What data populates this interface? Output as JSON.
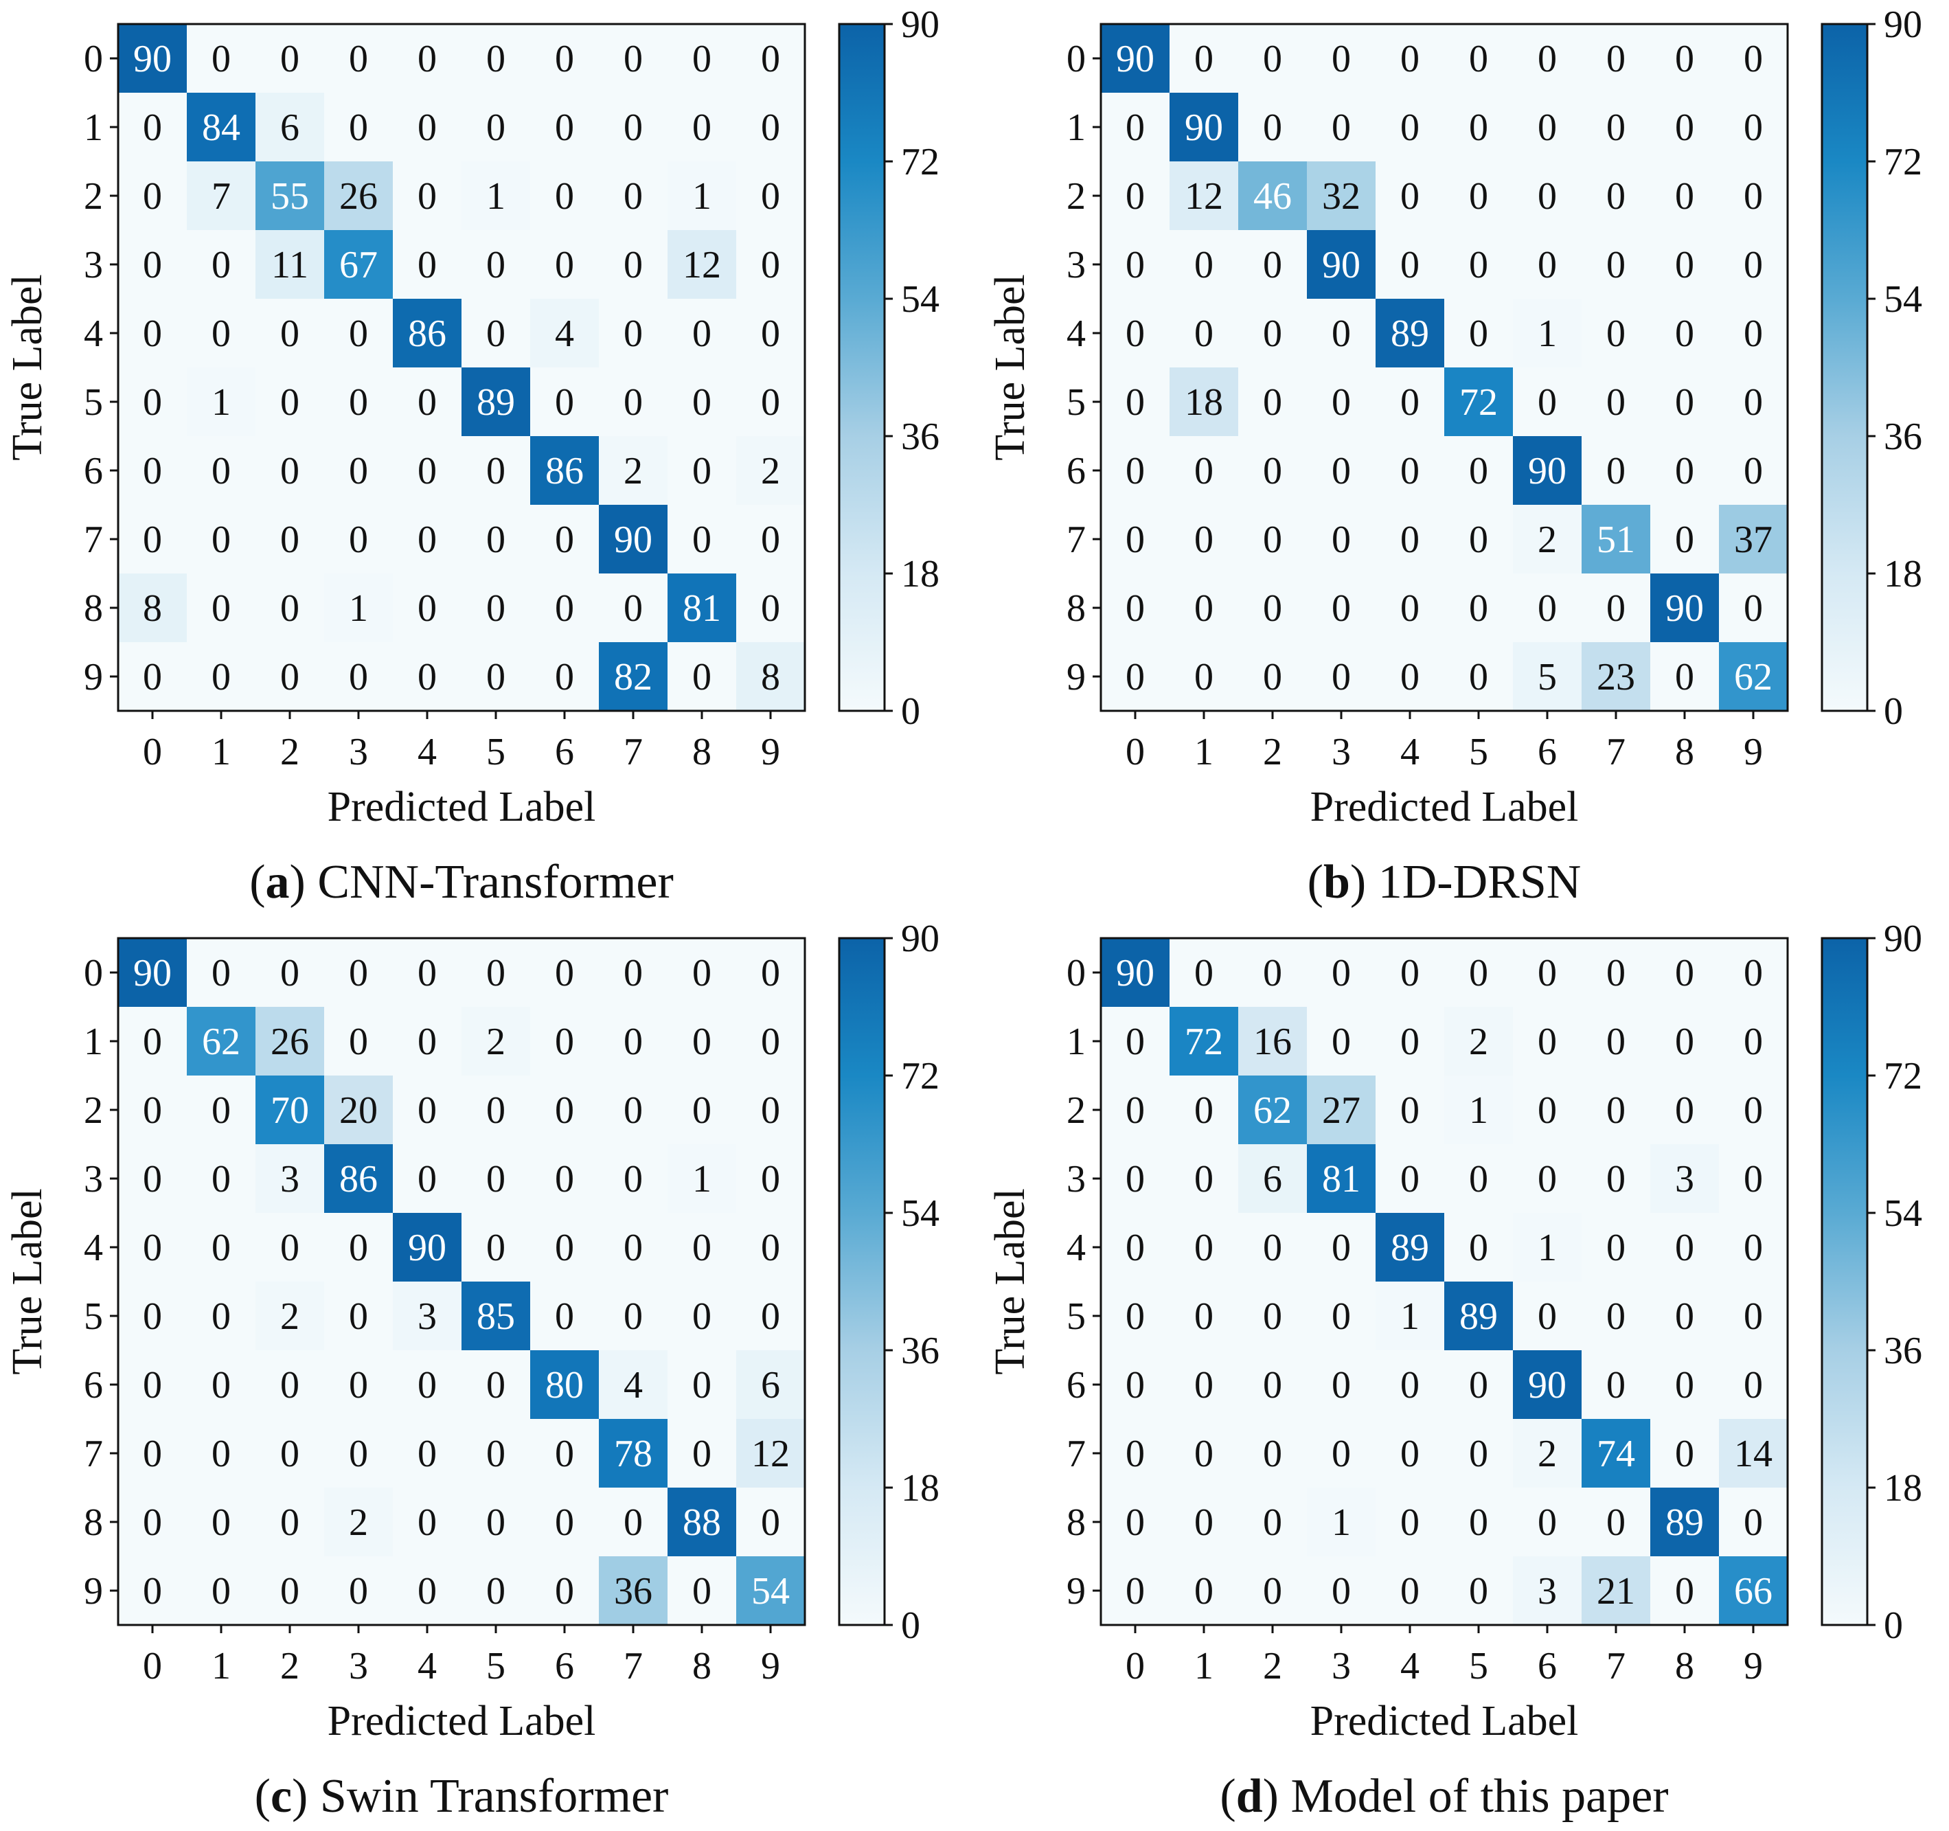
{
  "chart_data": [
    {
      "type": "heatmap",
      "panel_label": "a",
      "caption": "CNN-Transformer",
      "xlabel": "Predicted Label",
      "ylabel": "True Label",
      "x_tick_labels": [
        "0",
        "1",
        "2",
        "3",
        "4",
        "5",
        "6",
        "7",
        "8",
        "9"
      ],
      "y_tick_labels": [
        "0",
        "1",
        "2",
        "3",
        "4",
        "5",
        "6",
        "7",
        "8",
        "9"
      ],
      "colorbar": {
        "min": 0,
        "max": 90,
        "ticks": [
          0,
          18,
          36,
          54,
          72,
          90
        ]
      },
      "matrix": [
        [
          90,
          0,
          0,
          0,
          0,
          0,
          0,
          0,
          0,
          0
        ],
        [
          0,
          84,
          6,
          0,
          0,
          0,
          0,
          0,
          0,
          0
        ],
        [
          0,
          7,
          55,
          26,
          0,
          1,
          0,
          0,
          1,
          0
        ],
        [
          0,
          0,
          11,
          67,
          0,
          0,
          0,
          0,
          12,
          0
        ],
        [
          0,
          0,
          0,
          0,
          86,
          0,
          4,
          0,
          0,
          0
        ],
        [
          0,
          1,
          0,
          0,
          0,
          89,
          0,
          0,
          0,
          0
        ],
        [
          0,
          0,
          0,
          0,
          0,
          0,
          86,
          2,
          0,
          2
        ],
        [
          0,
          0,
          0,
          0,
          0,
          0,
          0,
          90,
          0,
          0
        ],
        [
          8,
          0,
          0,
          1,
          0,
          0,
          0,
          0,
          81,
          0
        ],
        [
          0,
          0,
          0,
          0,
          0,
          0,
          0,
          82,
          0,
          8
        ]
      ]
    },
    {
      "type": "heatmap",
      "panel_label": "b",
      "caption": "1D-DRSN",
      "xlabel": "Predicted Label",
      "ylabel": "True Label",
      "x_tick_labels": [
        "0",
        "1",
        "2",
        "3",
        "4",
        "5",
        "6",
        "7",
        "8",
        "9"
      ],
      "y_tick_labels": [
        "0",
        "1",
        "2",
        "3",
        "4",
        "5",
        "6",
        "7",
        "8",
        "9"
      ],
      "colorbar": {
        "min": 0,
        "max": 90,
        "ticks": [
          0,
          18,
          36,
          54,
          72,
          90
        ]
      },
      "matrix": [
        [
          90,
          0,
          0,
          0,
          0,
          0,
          0,
          0,
          0,
          0
        ],
        [
          0,
          90,
          0,
          0,
          0,
          0,
          0,
          0,
          0,
          0
        ],
        [
          0,
          12,
          46,
          32,
          0,
          0,
          0,
          0,
          0,
          0
        ],
        [
          0,
          0,
          0,
          90,
          0,
          0,
          0,
          0,
          0,
          0
        ],
        [
          0,
          0,
          0,
          0,
          89,
          0,
          1,
          0,
          0,
          0
        ],
        [
          0,
          18,
          0,
          0,
          0,
          72,
          0,
          0,
          0,
          0
        ],
        [
          0,
          0,
          0,
          0,
          0,
          0,
          90,
          0,
          0,
          0
        ],
        [
          0,
          0,
          0,
          0,
          0,
          0,
          2,
          51,
          0,
          37
        ],
        [
          0,
          0,
          0,
          0,
          0,
          0,
          0,
          0,
          90,
          0
        ],
        [
          0,
          0,
          0,
          0,
          0,
          0,
          5,
          23,
          0,
          62
        ]
      ]
    },
    {
      "type": "heatmap",
      "panel_label": "c",
      "caption": "Swin Transformer",
      "xlabel": "Predicted Label",
      "ylabel": "True Label",
      "x_tick_labels": [
        "0",
        "1",
        "2",
        "3",
        "4",
        "5",
        "6",
        "7",
        "8",
        "9"
      ],
      "y_tick_labels": [
        "0",
        "1",
        "2",
        "3",
        "4",
        "5",
        "6",
        "7",
        "8",
        "9"
      ],
      "colorbar": {
        "min": 0,
        "max": 90,
        "ticks": [
          0,
          18,
          36,
          54,
          72,
          90
        ]
      },
      "matrix": [
        [
          90,
          0,
          0,
          0,
          0,
          0,
          0,
          0,
          0,
          0
        ],
        [
          0,
          62,
          26,
          0,
          0,
          2,
          0,
          0,
          0,
          0
        ],
        [
          0,
          0,
          70,
          20,
          0,
          0,
          0,
          0,
          0,
          0
        ],
        [
          0,
          0,
          3,
          86,
          0,
          0,
          0,
          0,
          1,
          0
        ],
        [
          0,
          0,
          0,
          0,
          90,
          0,
          0,
          0,
          0,
          0
        ],
        [
          0,
          0,
          2,
          0,
          3,
          85,
          0,
          0,
          0,
          0
        ],
        [
          0,
          0,
          0,
          0,
          0,
          0,
          80,
          4,
          0,
          6
        ],
        [
          0,
          0,
          0,
          0,
          0,
          0,
          0,
          78,
          0,
          12
        ],
        [
          0,
          0,
          0,
          2,
          0,
          0,
          0,
          0,
          88,
          0
        ],
        [
          0,
          0,
          0,
          0,
          0,
          0,
          0,
          36,
          0,
          54
        ]
      ]
    },
    {
      "type": "heatmap",
      "panel_label": "d",
      "caption": "Model of this paper",
      "xlabel": "Predicted Label",
      "ylabel": "True Label",
      "x_tick_labels": [
        "0",
        "1",
        "2",
        "3",
        "4",
        "5",
        "6",
        "7",
        "8",
        "9"
      ],
      "y_tick_labels": [
        "0",
        "1",
        "2",
        "3",
        "4",
        "5",
        "6",
        "7",
        "8",
        "9"
      ],
      "colorbar": {
        "min": 0,
        "max": 90,
        "ticks": [
          0,
          18,
          36,
          54,
          72,
          90
        ]
      },
      "matrix": [
        [
          90,
          0,
          0,
          0,
          0,
          0,
          0,
          0,
          0,
          0
        ],
        [
          0,
          72,
          16,
          0,
          0,
          2,
          0,
          0,
          0,
          0
        ],
        [
          0,
          0,
          62,
          27,
          0,
          1,
          0,
          0,
          0,
          0
        ],
        [
          0,
          0,
          6,
          81,
          0,
          0,
          0,
          0,
          3,
          0
        ],
        [
          0,
          0,
          0,
          0,
          89,
          0,
          1,
          0,
          0,
          0
        ],
        [
          0,
          0,
          0,
          0,
          1,
          89,
          0,
          0,
          0,
          0
        ],
        [
          0,
          0,
          0,
          0,
          0,
          0,
          90,
          0,
          0,
          0
        ],
        [
          0,
          0,
          0,
          0,
          0,
          0,
          2,
          74,
          0,
          14
        ],
        [
          0,
          0,
          0,
          1,
          0,
          0,
          0,
          0,
          89,
          0
        ],
        [
          0,
          0,
          0,
          0,
          0,
          0,
          3,
          21,
          0,
          66
        ]
      ]
    }
  ]
}
